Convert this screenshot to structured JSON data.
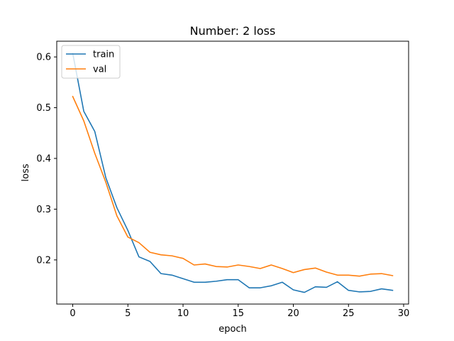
{
  "chart_data": {
    "type": "line",
    "title": "Number: 2 loss",
    "xlabel": "epoch",
    "ylabel": "loss",
    "xlim": [
      -1.45,
      30.45
    ],
    "ylim": [
      0.113,
      0.631
    ],
    "xticks": [
      0,
      5,
      10,
      15,
      20,
      25,
      30
    ],
    "yticks": [
      0.2,
      0.3,
      0.4,
      0.5,
      0.6
    ],
    "grid": false,
    "legend_position": "upper left",
    "x": [
      0,
      1,
      2,
      3,
      4,
      5,
      6,
      7,
      8,
      9,
      10,
      11,
      12,
      13,
      14,
      15,
      16,
      17,
      18,
      19,
      20,
      21,
      22,
      23,
      24,
      25,
      26,
      27,
      28,
      29
    ],
    "series": [
      {
        "name": "train",
        "color": "#1f77b4",
        "values": [
          0.607,
          0.493,
          0.453,
          0.362,
          0.303,
          0.258,
          0.206,
          0.197,
          0.173,
          0.17,
          0.163,
          0.156,
          0.156,
          0.158,
          0.161,
          0.161,
          0.145,
          0.145,
          0.149,
          0.156,
          0.141,
          0.136,
          0.147,
          0.146,
          0.157,
          0.14,
          0.137,
          0.138,
          0.143,
          0.14
        ]
      },
      {
        "name": "val",
        "color": "#ff7f0e",
        "values": [
          0.522,
          0.474,
          0.41,
          0.353,
          0.287,
          0.245,
          0.234,
          0.215,
          0.21,
          0.208,
          0.203,
          0.19,
          0.192,
          0.187,
          0.186,
          0.19,
          0.187,
          0.183,
          0.19,
          0.183,
          0.175,
          0.181,
          0.184,
          0.176,
          0.17,
          0.17,
          0.168,
          0.172,
          0.173,
          0.169
        ]
      }
    ]
  }
}
